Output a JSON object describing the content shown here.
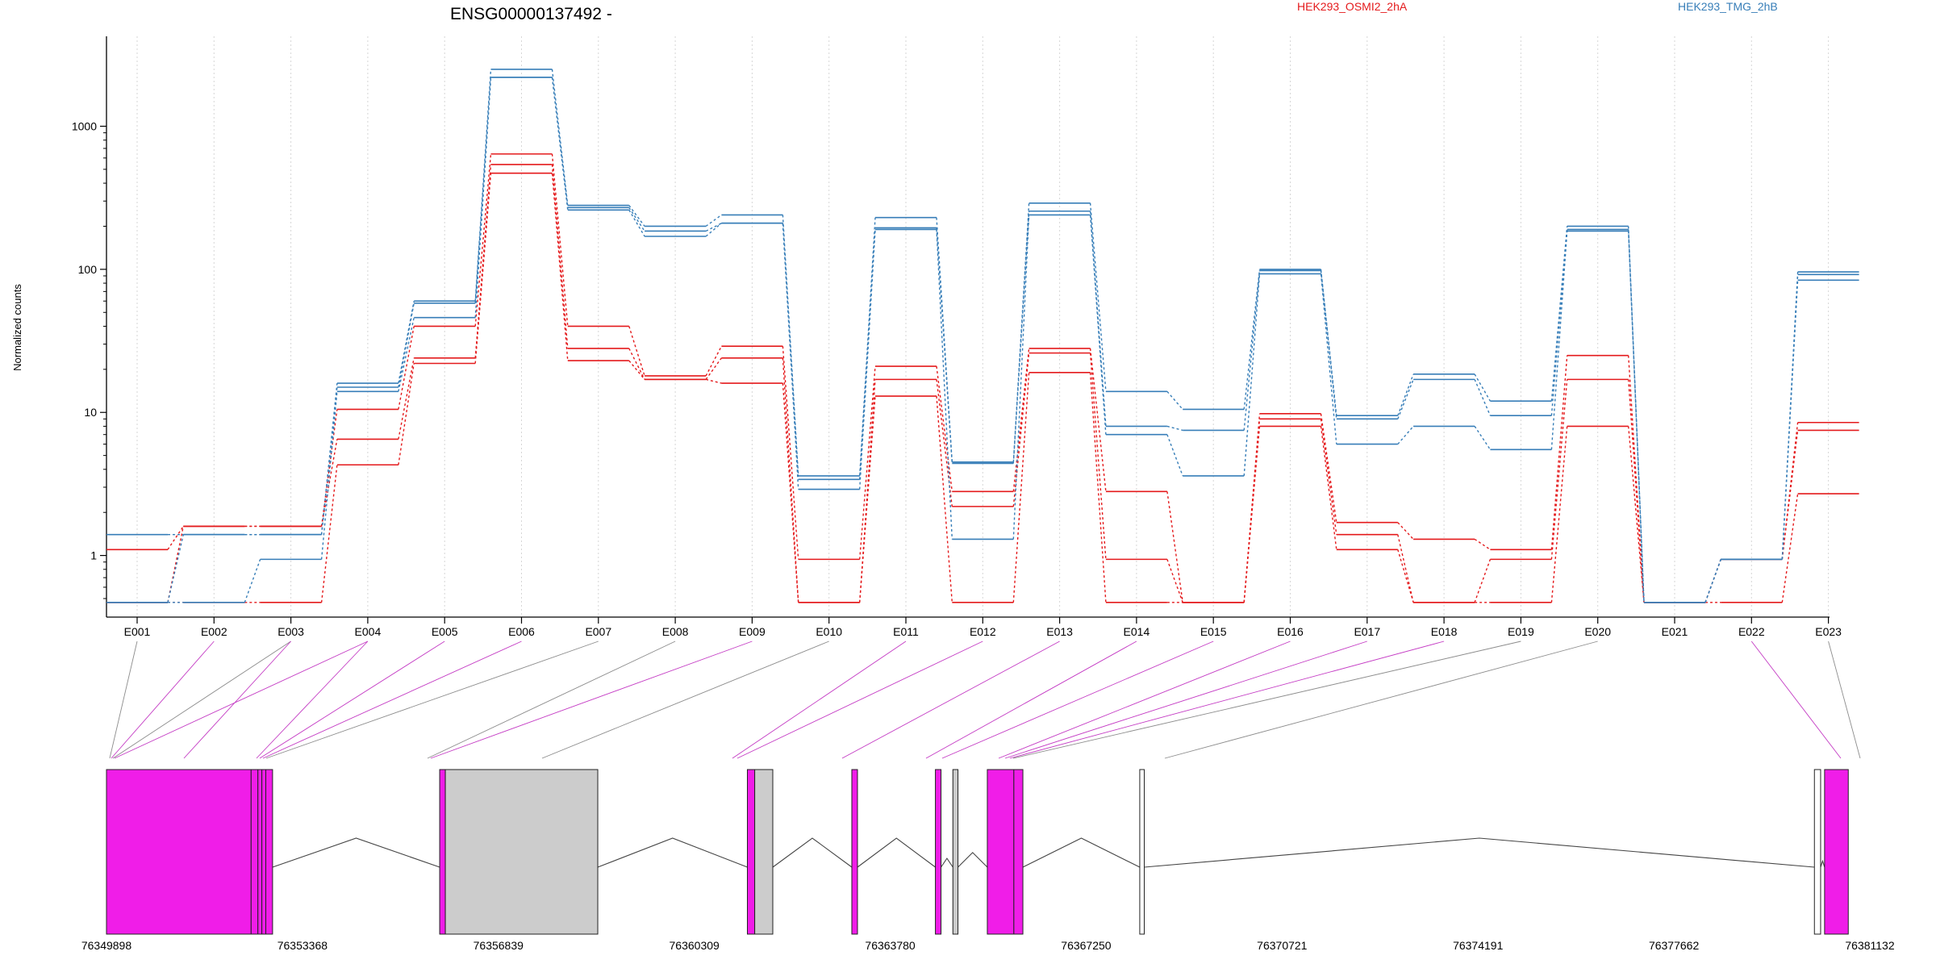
{
  "chart_data": {
    "type": "line",
    "title": "ENSG00000137492 -",
    "ylabel": "Normalized counts",
    "yscale": "log",
    "ylim": [
      0.5,
      3500
    ],
    "yticks": [
      1,
      10,
      100,
      1000
    ],
    "ytick_labels": [
      "1",
      "10",
      "100",
      "1000"
    ],
    "grid": "vertical dotted per exon",
    "legend": [
      {
        "name": "HEK293_OSMI2_2hA",
        "color": "#e41a1c",
        "position": "top-center"
      },
      {
        "name": "HEK293_TMG_2hB",
        "color": "#377eb8",
        "position": "top-right"
      }
    ],
    "categories": [
      "E001",
      "E002",
      "E003",
      "E004",
      "E005",
      "E006",
      "E007",
      "E008",
      "E009",
      "E010",
      "E011",
      "E012",
      "E013",
      "E014",
      "E015",
      "E016",
      "E017",
      "E018",
      "E019",
      "E020",
      "E021",
      "E022",
      "E023"
    ],
    "series": [
      {
        "group": "HEK293_OSMI2_2hA",
        "color": "#e41a1c",
        "values": [
          1.1,
          1.6,
          1.6,
          10.5,
          40,
          640,
          40,
          18,
          29,
          0.94,
          21,
          2.8,
          28,
          2.8,
          0.47,
          9.8,
          1.7,
          1.3,
          1.1,
          25,
          0.47,
          0.94,
          8.5
        ]
      },
      {
        "group": "HEK293_OSMI2_2hA",
        "color": "#e41a1c",
        "values": [
          0.47,
          1.6,
          1.6,
          6.5,
          24,
          540,
          28,
          17,
          24,
          0.47,
          17,
          2.2,
          26,
          0.94,
          0.47,
          9.0,
          1.4,
          0.47,
          0.94,
          17,
          0.47,
          0.94,
          7.5
        ]
      },
      {
        "group": "HEK293_OSMI2_2hA",
        "color": "#e41a1c",
        "values": [
          0.47,
          0.47,
          0.47,
          4.3,
          22,
          470,
          23,
          17,
          16,
          0.47,
          13,
          0.47,
          19,
          0.47,
          0.47,
          8.0,
          1.1,
          0.47,
          0.47,
          8.0,
          0.47,
          0.47,
          2.7
        ]
      },
      {
        "group": "HEK293_TMG_2hB",
        "color": "#377eb8",
        "values": [
          1.4,
          1.4,
          1.4,
          16,
          60,
          2500,
          280,
          200,
          240,
          3.6,
          230,
          4.5,
          290,
          14,
          10.5,
          100,
          9.5,
          18.5,
          12,
          200,
          0.47,
          0.94,
          96
        ]
      },
      {
        "group": "HEK293_TMG_2hB",
        "color": "#377eb8",
        "values": [
          0.47,
          1.4,
          1.4,
          15,
          58,
          2200,
          270,
          185,
          210,
          3.4,
          195,
          4.4,
          255,
          8,
          7.5,
          98,
          9.0,
          17,
          9.5,
          190,
          0.47,
          0.94,
          92
        ]
      },
      {
        "group": "HEK293_TMG_2hB",
        "color": "#377eb8",
        "values": [
          0.47,
          0.47,
          0.94,
          14,
          46,
          2200,
          260,
          170,
          210,
          2.9,
          190,
          1.3,
          240,
          7,
          3.6,
          93,
          6,
          8,
          5.5,
          185,
          0.47,
          0.94,
          84
        ]
      }
    ],
    "gene_model": {
      "coordinate_labels": [
        "76349898",
        "76353368",
        "76356839",
        "76360309",
        "76363780",
        "76367250",
        "76370721",
        "76374191",
        "76377662",
        "76381132"
      ],
      "coord_start": 76349898,
      "coord_end": 76381132,
      "exon_spans": [
        [
          76349898,
          76352460
        ],
        [
          76352460,
          76352580
        ],
        [
          76352580,
          76352650
        ],
        [
          76352650,
          76352720
        ],
        [
          76352720,
          76352840
        ],
        [
          76355800,
          76355900
        ],
        [
          76355900,
          76358600
        ],
        [
          76361250,
          76361380
        ],
        [
          76361380,
          76361700
        ],
        [
          76363100,
          76363200
        ],
        [
          76364580,
          76364680
        ],
        [
          76364890,
          76364980
        ],
        [
          76365500,
          76365970
        ],
        [
          76365970,
          76366130
        ],
        [
          76368200,
          76368280
        ],
        [
          76380150,
          76380260
        ],
        [
          76380330,
          76380750
        ]
      ],
      "exon_highlighted": [
        true,
        true,
        true,
        true,
        true,
        true,
        false,
        true,
        false,
        true,
        true,
        false,
        true,
        true,
        false,
        false,
        true
      ],
      "intron_segments": [
        [
          76352840,
          76355800
        ],
        [
          76358600,
          76361250
        ],
        [
          76361700,
          76363100
        ],
        [
          76363200,
          76364580
        ],
        [
          76364680,
          76364890
        ],
        [
          76364980,
          76365500
        ],
        [
          76366130,
          76368200
        ],
        [
          76368280,
          76380150
        ],
        [
          76380260,
          76380330
        ]
      ],
      "colors": {
        "highlight": "#f01de8",
        "plain": "#cccccc",
        "empty": "#ffffff"
      }
    }
  }
}
